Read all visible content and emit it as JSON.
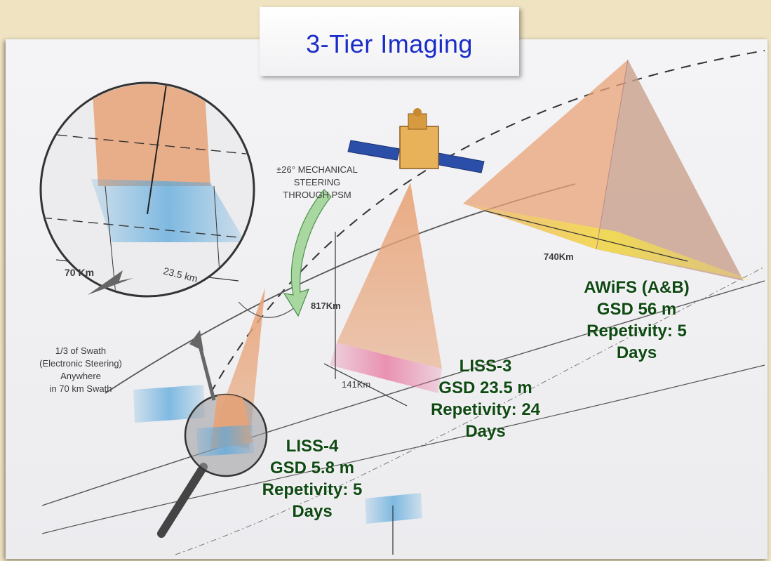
{
  "title": "3-Tier Imaging",
  "diagram_labels": {
    "steering": [
      "±26° MECHANICAL",
      "STEERING",
      "THROUGH PSM"
    ],
    "swath_70": "70 Km",
    "swath_23": "23.5 km",
    "swath_note": [
      "1/3 of Swath",
      "(Electronic Steering)",
      "Anywhere",
      "in 70 km Swath"
    ],
    "altitude": "817Km",
    "swath_141": "141Km",
    "swath_740": "740Km"
  },
  "sensors": {
    "awifs": {
      "name": "AWiFS (A&B)",
      "gsd": "GSD 56 m",
      "repetivity": "Repetivity: 5",
      "days": "Days"
    },
    "liss3": {
      "name": "LISS-3",
      "gsd": "GSD 23.5 m",
      "repetivity": "Repetivity: 24",
      "days": "Days"
    },
    "liss4": {
      "name": "LISS-4",
      "gsd": "GSD 5.8 m",
      "repetivity": "Repetivity: 5",
      "days": "Days"
    }
  },
  "colors": {
    "title": "#1a2cc8",
    "callout_text": "#0f4a12",
    "beam": "#e8a377",
    "footprint_blue": "#5aa8dc",
    "footprint_yellow": "#f5e04a",
    "footprint_pink": "#e87aa0"
  }
}
